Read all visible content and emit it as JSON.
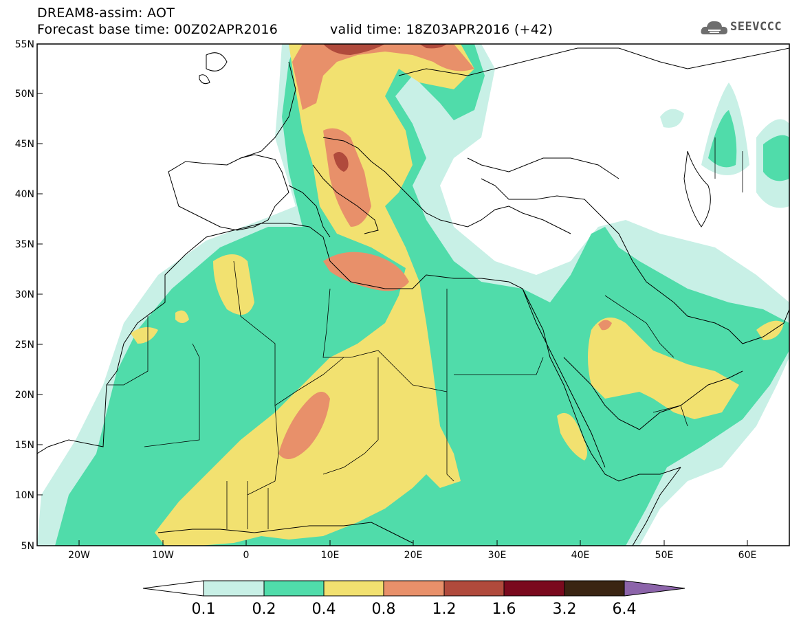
{
  "header": {
    "title": "DREAM8-assim: AOT",
    "base_time": "Forecast base time: 00Z02APR2016",
    "valid_time": "valid time: 18Z03APR2016 (+42)",
    "logo_text": "SEEVCCC"
  },
  "map": {
    "region": "North Africa, Mediterranean and Middle East",
    "lon_range": [
      -25,
      65
    ],
    "lat_range": [
      5,
      55
    ],
    "lat_labels": [
      "55N",
      "50N",
      "45N",
      "40N",
      "35N",
      "30N",
      "25N",
      "20N",
      "15N",
      "10N",
      "5N"
    ],
    "lon_labels": [
      "20W",
      "10W",
      "0",
      "10E",
      "20E",
      "30E",
      "40E",
      "50E",
      "60E"
    ]
  },
  "colorbar": {
    "ticks": [
      "0.1",
      "0.2",
      "0.4",
      "0.8",
      "1.2",
      "1.6",
      "3.2",
      "6.4"
    ],
    "colors": [
      "#ffffff",
      "#c8f0e6",
      "#50dcaa",
      "#f2e170",
      "#e8906a",
      "#b04a3c",
      "#7a0a1e",
      "#3a2412",
      "#8c64aa"
    ]
  },
  "colors": {
    "lvl1": "#c8f0e6",
    "lvl2": "#50dcaa",
    "lvl3": "#f2e170",
    "lvl4": "#e8906a",
    "lvl5": "#b04a3c",
    "lvl6": "#7a0a1e"
  }
}
